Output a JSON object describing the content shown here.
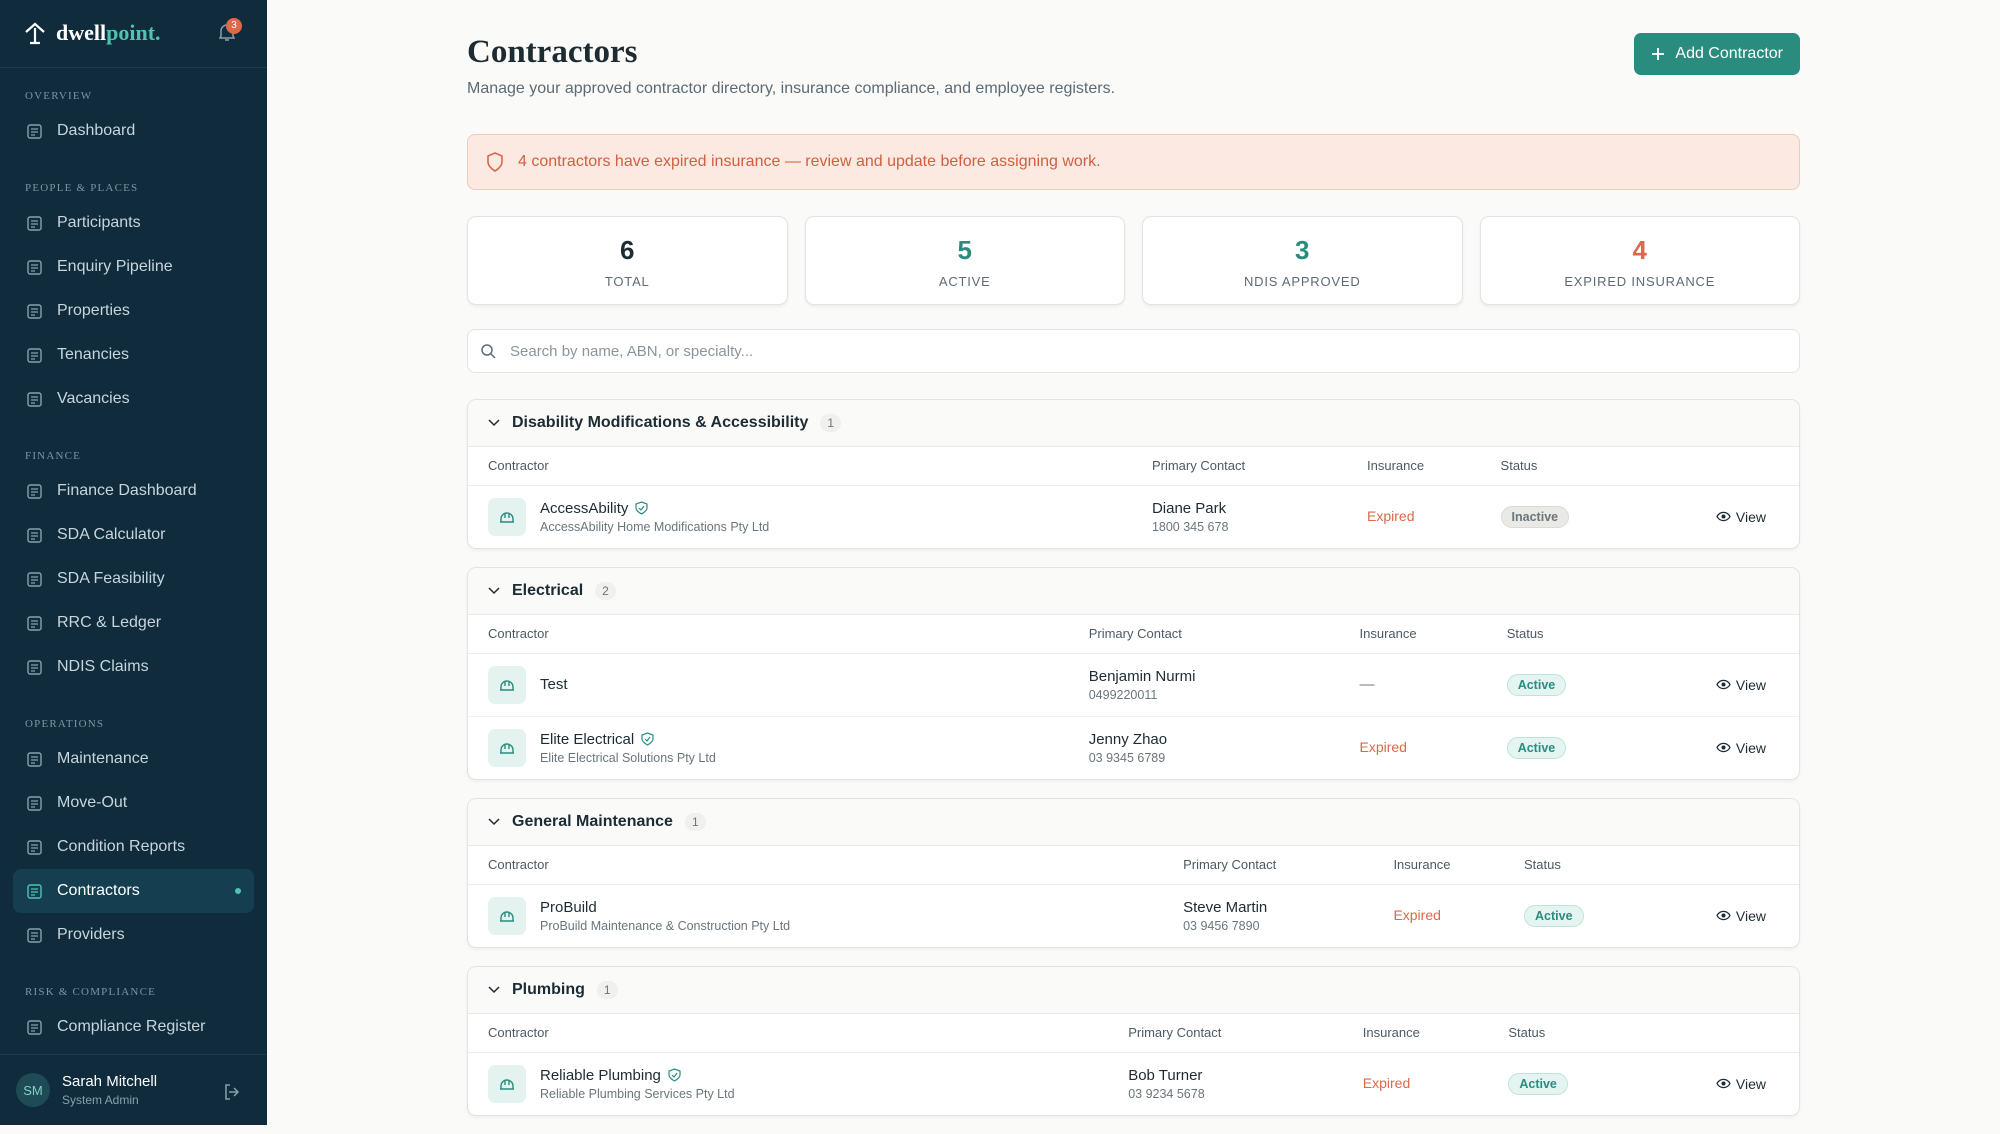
{
  "brand": {
    "name_a": "dwell",
    "name_b": "point."
  },
  "notifications": "3",
  "nav": [
    {
      "heading": "OVERVIEW",
      "items": [
        {
          "label": "Dashboard"
        }
      ]
    },
    {
      "heading": "PEOPLE & PLACES",
      "items": [
        {
          "label": "Participants"
        },
        {
          "label": "Enquiry Pipeline"
        },
        {
          "label": "Properties"
        },
        {
          "label": "Tenancies"
        },
        {
          "label": "Vacancies"
        }
      ]
    },
    {
      "heading": "FINANCE",
      "items": [
        {
          "label": "Finance Dashboard"
        },
        {
          "label": "SDA Calculator"
        },
        {
          "label": "SDA Feasibility"
        },
        {
          "label": "RRC & Ledger"
        },
        {
          "label": "NDIS Claims"
        }
      ]
    },
    {
      "heading": "OPERATIONS",
      "items": [
        {
          "label": "Maintenance"
        },
        {
          "label": "Move-Out"
        },
        {
          "label": "Condition Reports"
        },
        {
          "label": "Contractors",
          "active": true
        },
        {
          "label": "Providers"
        }
      ]
    },
    {
      "heading": "RISK & COMPLIANCE",
      "items": [
        {
          "label": "Compliance Register"
        }
      ]
    }
  ],
  "user": {
    "initials": "SM",
    "name": "Sarah Mitchell",
    "role": "System Admin"
  },
  "header": {
    "title": "Contractors",
    "subtitle": "Manage your approved contractor directory, insurance compliance, and employee registers.",
    "button": "Add Contractor"
  },
  "alert": "4 contractors have expired insurance — review and update before assigning work.",
  "stats": [
    {
      "value": 6,
      "label": "TOTAL",
      "color": "#1d2b33"
    },
    {
      "value": 5,
      "label": "ACTIVE",
      "color": "#2a8c7f"
    },
    {
      "value": 3,
      "label": "NDIS APPROVED",
      "color": "#2a8c7f"
    },
    {
      "value": 4,
      "label": "EXPIRED INSURANCE",
      "color": "#d9694a"
    }
  ],
  "search_placeholder": "Search by name, ABN, or specialty...",
  "table_columns": [
    "Contractor",
    "Primary Contact",
    "Insurance",
    "Status"
  ],
  "row_action": "View",
  "groups": [
    {
      "name": "Disability Modifications & Accessibility",
      "count": 1,
      "rows": [
        {
          "name": "AccessAbility",
          "verified": true,
          "company": "AccessAbility Home Modifications Pty Ltd",
          "contact": "Diane Park",
          "phone": "1800 345 678",
          "insurance": "Expired",
          "status": "Inactive"
        }
      ]
    },
    {
      "name": "Electrical",
      "count": 2,
      "rows": [
        {
          "name": "Test",
          "verified": false,
          "contact": "Benjamin Nurmi",
          "phone": "0499220011",
          "insurance": "—",
          "status": "Active"
        },
        {
          "name": "Elite Electrical",
          "verified": true,
          "company": "Elite Electrical Solutions Pty Ltd",
          "contact": "Jenny Zhao",
          "phone": "03 9345 6789",
          "insurance": "Expired",
          "status": "Active"
        }
      ]
    },
    {
      "name": "General Maintenance",
      "count": 1,
      "rows": [
        {
          "name": "ProBuild",
          "verified": false,
          "company": "ProBuild Maintenance & Construction Pty Ltd",
          "contact": "Steve Martin",
          "phone": "03 9456 7890",
          "insurance": "Expired",
          "status": "Active"
        }
      ]
    },
    {
      "name": "Plumbing",
      "count": 1,
      "rows": [
        {
          "name": "Reliable Plumbing",
          "verified": true,
          "company": "Reliable Plumbing Services Pty Ltd",
          "contact": "Bob Turner",
          "phone": "03 9234 5678",
          "insurance": "Expired",
          "status": "Active"
        }
      ]
    }
  ]
}
